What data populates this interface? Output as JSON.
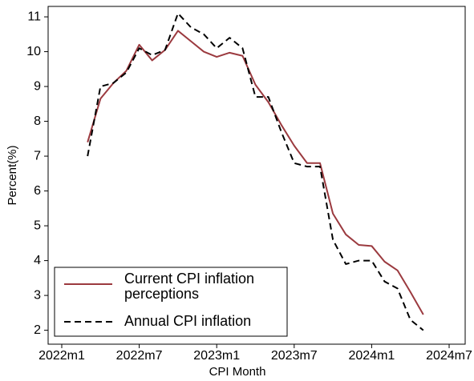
{
  "chart_data": {
    "type": "line",
    "x_label": "CPI Month",
    "y_label": "Percent(%)",
    "x": [
      "2022m3",
      "2022m4",
      "2022m5",
      "2022m6",
      "2022m7",
      "2022m8",
      "2022m9",
      "2022m10",
      "2022m11",
      "2022m12",
      "2023m1",
      "2023m2",
      "2023m3",
      "2023m4",
      "2023m5",
      "2023m6",
      "2023m7",
      "2023m8",
      "2023m9",
      "2023m10",
      "2023m11",
      "2023m12",
      "2024m1",
      "2024m2",
      "2024m3",
      "2024m4",
      "2024m5"
    ],
    "series": [
      {
        "name": "Current CPI inflation perceptions",
        "color": "#9b3a3f",
        "dash": false,
        "values": [
          7.4,
          8.65,
          9.1,
          9.45,
          10.2,
          9.75,
          10.05,
          10.6,
          10.3,
          10.0,
          9.85,
          9.97,
          9.88,
          9.05,
          8.55,
          7.9,
          7.3,
          6.8,
          6.8,
          5.35,
          4.75,
          4.45,
          4.42,
          3.97,
          3.72,
          3.1,
          2.45
        ]
      },
      {
        "name": "Annual CPI inflation",
        "color": "#000000",
        "dash": true,
        "values": [
          7.0,
          9.0,
          9.1,
          9.4,
          10.1,
          9.9,
          10.05,
          11.1,
          10.7,
          10.5,
          10.1,
          10.4,
          10.1,
          8.7,
          8.7,
          7.7,
          6.8,
          6.7,
          6.7,
          4.6,
          3.9,
          4.0,
          4.0,
          3.4,
          3.2,
          2.3,
          2.0
        ]
      }
    ],
    "xlim": [
      "2022m1",
      "2024m7"
    ],
    "xticks": [
      "2022m1",
      "2022m7",
      "2023m1",
      "2023m7",
      "2024m1",
      "2024m7"
    ],
    "ylim": [
      1.6,
      11.3
    ],
    "yticks": [
      2,
      3,
      4,
      5,
      6,
      7,
      8,
      9,
      10,
      11
    ],
    "grid": false,
    "legend_position": "lower left"
  }
}
